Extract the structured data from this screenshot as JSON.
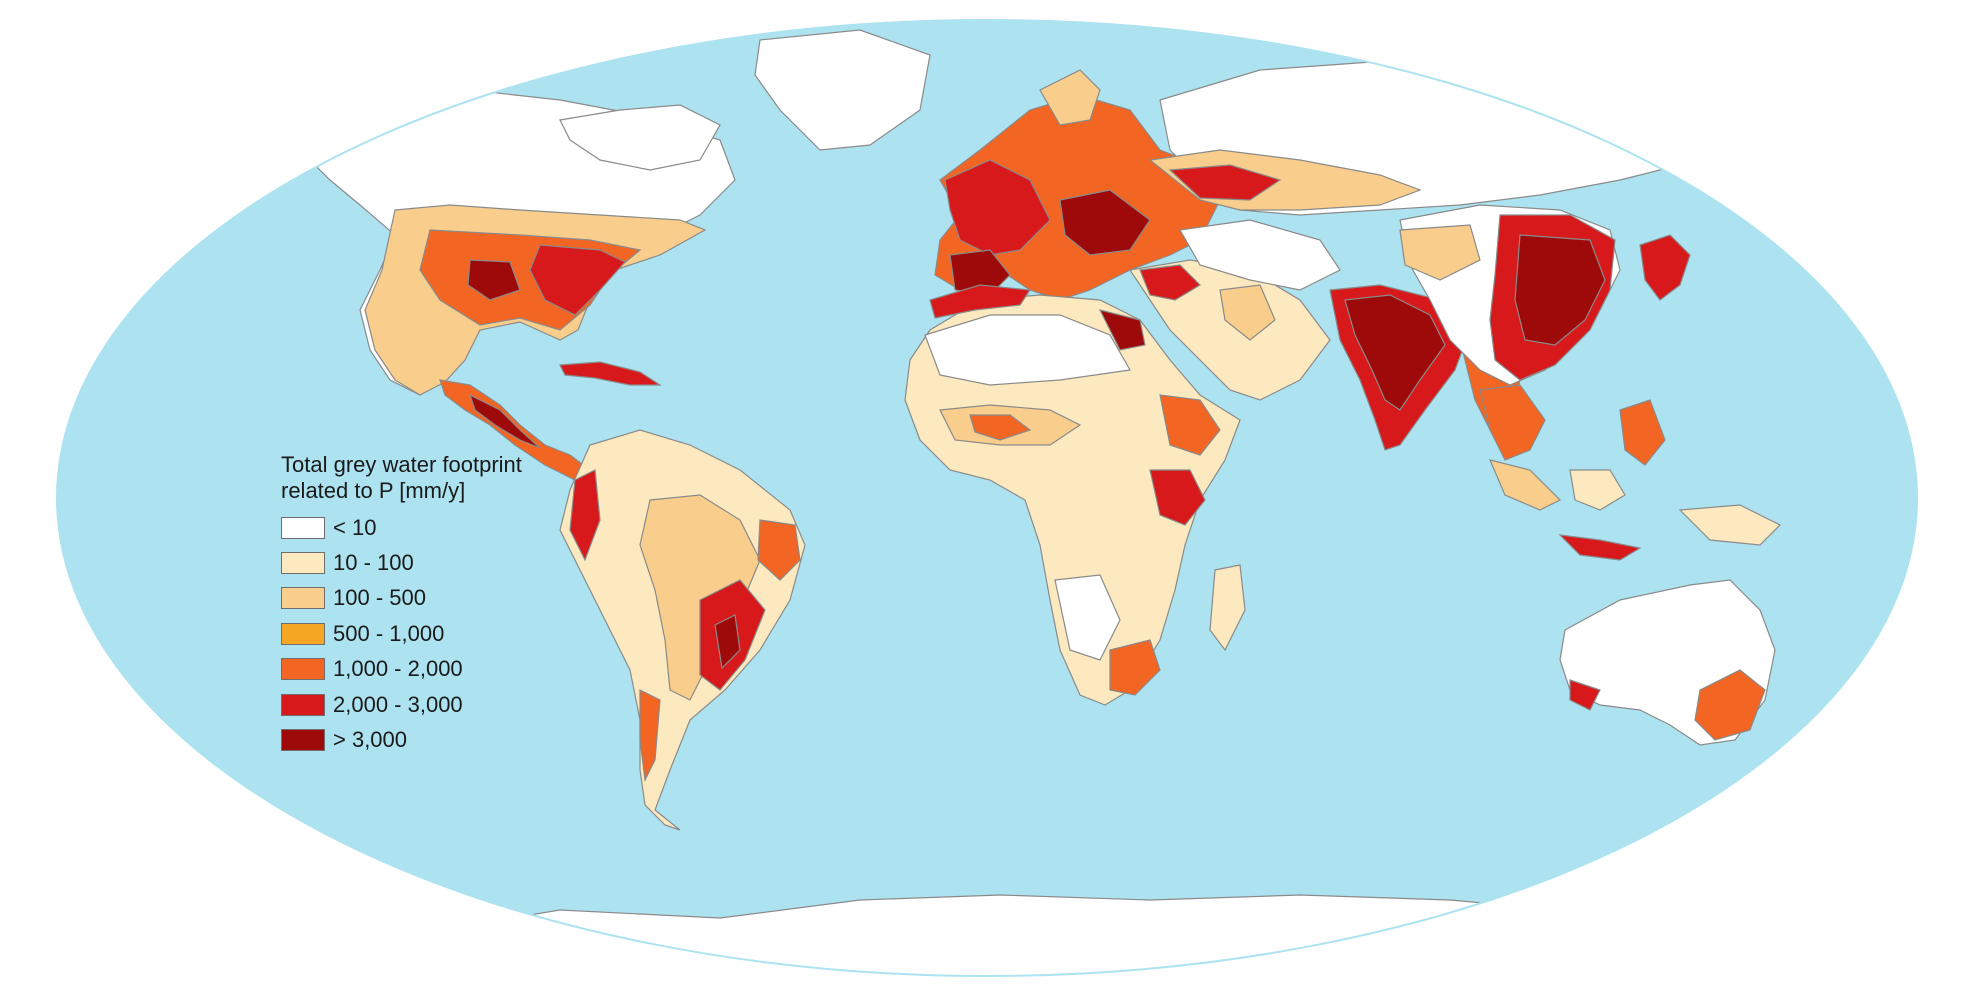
{
  "map": {
    "ocean_color": "#ADE3F0",
    "land_base_color": "#FFFFFF",
    "border_color": "#8a8a8a",
    "projection": "Robinson (world)"
  },
  "legend": {
    "title_line1": "Total grey water footprint",
    "title_line2": "related to P [mm/y]",
    "items": [
      {
        "label": "< 10",
        "color": "#FFFFFF"
      },
      {
        "label": "10 - 100",
        "color": "#FDE9BF"
      },
      {
        "label": "100 - 500",
        "color": "#F9CD8B"
      },
      {
        "label": "500 - 1,000",
        "color": "#F5A623"
      },
      {
        "label": "1,000 - 2,000",
        "color": "#F26522"
      },
      {
        "label": "2,000 - 3,000",
        "color": "#D7191C"
      },
      {
        "label": "> 3,000",
        "color": "#9E0A0A"
      }
    ]
  }
}
